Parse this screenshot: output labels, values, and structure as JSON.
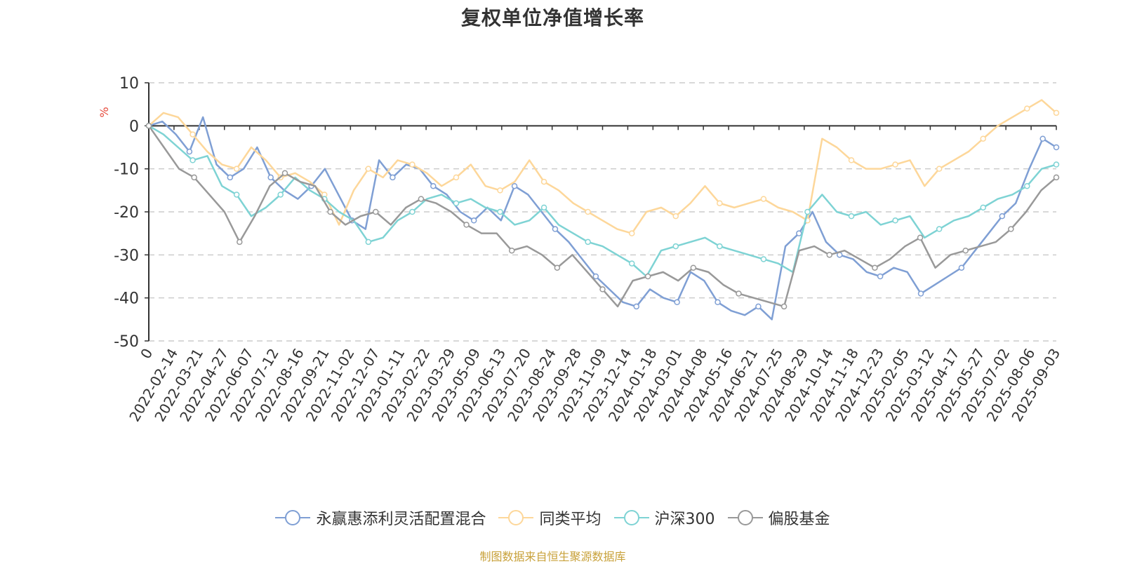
{
  "chart_data": {
    "type": "line",
    "title": "复权单位净值增长率",
    "ylabel": "%",
    "ylim": [
      -50,
      10
    ],
    "yticks": [
      10,
      0,
      -10,
      -20,
      -30,
      -40,
      -50
    ],
    "grid": true,
    "legend_position": "bottom",
    "x_tick_labels": [
      "0",
      "2022-02-14",
      "2022-03-21",
      "2022-04-27",
      "2022-06-07",
      "2022-07-12",
      "2022-08-16",
      "2022-09-21",
      "2022-11-02",
      "2022-12-07",
      "2023-01-11",
      "2023-02-22",
      "2023-03-29",
      "2023-05-09",
      "2023-06-13",
      "2023-07-20",
      "2023-08-24",
      "2023-09-28",
      "2023-11-09",
      "2023-12-14",
      "2024-01-18",
      "2024-03-01",
      "2024-04-08",
      "2024-05-16",
      "2024-06-21",
      "2024-07-25",
      "2024-08-29",
      "2024-10-14",
      "2024-11-18",
      "2024-12-23",
      "2025-02-05",
      "2025-03-12",
      "2025-04-17",
      "2025-05-27",
      "2025-07-02",
      "2025-08-06",
      "2025-09-03"
    ],
    "series": [
      {
        "name": "永赢惠添利灵活配置混合",
        "color": "#7f9fd4",
        "values": [
          0,
          1,
          -2,
          -6,
          2,
          -9,
          -12,
          -10,
          -5,
          -12,
          -15,
          -17,
          -14,
          -10,
          -16,
          -22,
          -24,
          -8,
          -12,
          -9,
          -10,
          -14,
          -16,
          -20,
          -22,
          -19,
          -22,
          -14,
          -16,
          -20,
          -24,
          -27,
          -31,
          -35,
          -38,
          -41,
          -42,
          -38,
          -40,
          -41,
          -34,
          -36,
          -41,
          -43,
          -44,
          -42,
          -45,
          -28,
          -25,
          -20,
          -27,
          -30,
          -31,
          -34,
          -35,
          -33,
          -34,
          -39,
          -37,
          -35,
          -33,
          -29,
          -25,
          -21,
          -18,
          -10,
          -3,
          -5
        ]
      },
      {
        "name": "同类平均",
        "color": "#fdd79a",
        "values": [
          0,
          3,
          2,
          -2,
          -6,
          -9,
          -10,
          -5,
          -8,
          -12,
          -11,
          -13,
          -16,
          -23,
          -15,
          -10,
          -12,
          -8,
          -9,
          -11,
          -14,
          -12,
          -9,
          -14,
          -15,
          -13,
          -8,
          -13,
          -15,
          -18,
          -20,
          -22,
          -24,
          -25,
          -20,
          -19,
          -21,
          -18,
          -14,
          -18,
          -19,
          -18,
          -17,
          -19,
          -20,
          -22,
          -3,
          -5,
          -8,
          -10,
          -10,
          -9,
          -8,
          -14,
          -10,
          -8,
          -6,
          -3,
          0,
          2,
          4,
          6,
          3
        ]
      },
      {
        "name": "沪深300",
        "color": "#7ed3d4",
        "values": [
          0,
          -2,
          -5,
          -8,
          -7,
          -14,
          -16,
          -21,
          -19,
          -16,
          -12,
          -15,
          -17,
          -20,
          -22,
          -27,
          -26,
          -22,
          -20,
          -17,
          -16,
          -18,
          -17,
          -19,
          -20,
          -23,
          -22,
          -19,
          -23,
          -25,
          -27,
          -28,
          -30,
          -32,
          -35,
          -29,
          -28,
          -27,
          -26,
          -28,
          -29,
          -30,
          -31,
          -32,
          -34,
          -20,
          -16,
          -20,
          -21,
          -20,
          -23,
          -22,
          -21,
          -26,
          -24,
          -22,
          -21,
          -19,
          -17,
          -16,
          -14,
          -10,
          -9
        ]
      },
      {
        "name": "偏股基金",
        "color": "#999999",
        "values": [
          0,
          -5,
          -10,
          -12,
          -16,
          -20,
          -27,
          -21,
          -14,
          -11,
          -13,
          -14,
          -20,
          -23,
          -21,
          -20,
          -23,
          -19,
          -17,
          -18,
          -20,
          -23,
          -25,
          -25,
          -29,
          -28,
          -30,
          -33,
          -30,
          -34,
          -38,
          -42,
          -36,
          -35,
          -34,
          -36,
          -33,
          -34,
          -37,
          -39,
          -40,
          -41,
          -42,
          -29,
          -28,
          -30,
          -29,
          -31,
          -33,
          -31,
          -28,
          -26,
          -33,
          -30,
          -29,
          -28,
          -27,
          -24,
          -20,
          -15,
          -12
        ]
      }
    ]
  },
  "source_note": "制图数据来自恒生聚源数据库"
}
